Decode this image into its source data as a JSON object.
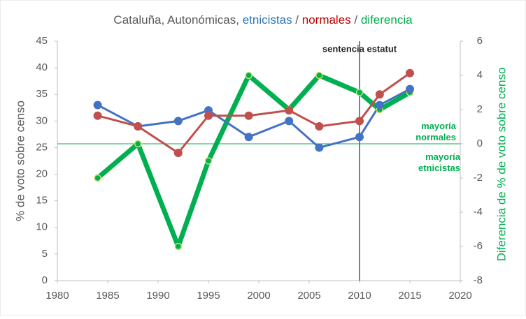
{
  "chart_data": {
    "type": "line",
    "title": [
      {
        "text": "Cataluña, Autonómicas, ",
        "color": "#595959"
      },
      {
        "text": "etnicistas",
        "color": "#2e75b6"
      },
      {
        "text": " / ",
        "color": "#595959"
      },
      {
        "text": "normales",
        "color": "#c00000"
      },
      {
        "text": " / ",
        "color": "#595959"
      },
      {
        "text": "diferencia",
        "color": "#00b050"
      }
    ],
    "y_label": "% de voto sobre censo",
    "y2_label": "Diferencia de % de voto sobre censo",
    "x": [
      1984,
      1988,
      1992,
      1995,
      1999,
      2003,
      2006,
      2010,
      2012,
      2015
    ],
    "series": [
      {
        "name": "etnicistas",
        "color": "#4472c4",
        "values": [
          33,
          29,
          30,
          32,
          27,
          30,
          25,
          27,
          33,
          36
        ]
      },
      {
        "name": "normales",
        "color": "#c0504d",
        "values": [
          31,
          29,
          24,
          31,
          31,
          32,
          29,
          30,
          35,
          39
        ]
      },
      {
        "name": "diferencia",
        "color": "#00b050",
        "axis": "y2",
        "values": [
          -2,
          0,
          -6,
          -1,
          4,
          2,
          4,
          3,
          2,
          3
        ]
      }
    ],
    "xlim": [
      1980,
      2020
    ],
    "xticks": [
      1980,
      1985,
      1990,
      1995,
      2000,
      2005,
      2010,
      2015,
      2020
    ],
    "ylim": [
      0,
      45
    ],
    "yticks": [
      0,
      5,
      10,
      15,
      20,
      25,
      30,
      35,
      40,
      45
    ],
    "y2lim": [
      -8,
      6
    ],
    "y2ticks": [
      -8,
      -6,
      -4,
      -2,
      0,
      2,
      4,
      6
    ],
    "vline": {
      "x": 2010,
      "label": "sentencia estatut"
    },
    "hline": {
      "y2": 0,
      "labels": [
        "mayoría normales",
        "mayoría etnicistas"
      ]
    }
  }
}
